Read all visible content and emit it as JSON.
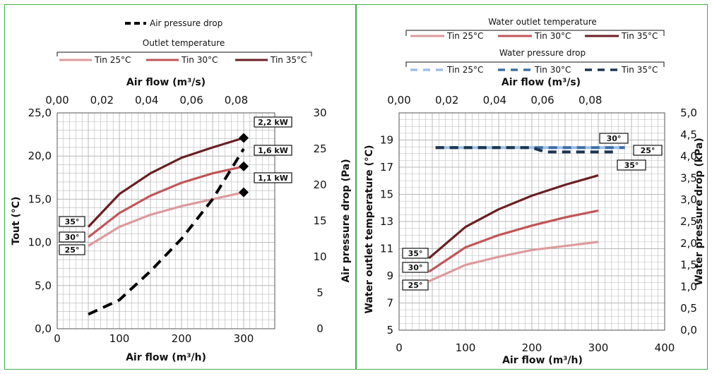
{
  "colors": {
    "border": "#3fae49",
    "tin25": "#dd9a9c",
    "tin30": "#c15558",
    "tin35": "#6a1f22",
    "air_dp": "#000000",
    "wdp25": "#9dbfe6",
    "wdp30": "#3f6fa6",
    "wdp35": "#1c3550",
    "grid": "#b8b8b8"
  },
  "chart_data": [
    {
      "type": "line",
      "x_bottom": {
        "label": "Air flow (m³/h)",
        "lim": [
          0,
          350
        ],
        "ticks": [
          "0",
          "100",
          "200",
          "300"
        ]
      },
      "x_top": {
        "label": "Air flow (m³/s)",
        "lim": [
          0,
          0.0972
        ],
        "ticks": [
          "0,00",
          "0,02",
          "0,04",
          "0,06",
          "0,08"
        ]
      },
      "y_left": {
        "label": "Tout (°C)",
        "lim": [
          0,
          25
        ],
        "ticks": [
          "0,0",
          "5,0",
          "10,0",
          "15,0",
          "20,0",
          "25,0"
        ]
      },
      "y_right": {
        "label": "Air pressure drop (Pa)",
        "lim": [
          0,
          30
        ],
        "ticks": [
          "0",
          "5",
          "10",
          "15",
          "20",
          "25",
          "30"
        ]
      },
      "legend_top": "Air pressure drop",
      "legend_title": "Outlet temperature",
      "series": [
        {
          "name": "Tin 25°C",
          "axis": "left",
          "x": [
            50,
            100,
            150,
            200,
            250,
            300
          ],
          "y": [
            9.6,
            11.8,
            13.2,
            14.2,
            15.0,
            15.8
          ]
        },
        {
          "name": "Tin 30°C",
          "axis": "left",
          "x": [
            50,
            100,
            150,
            200,
            250,
            300
          ],
          "y": [
            10.6,
            13.4,
            15.4,
            16.9,
            18.0,
            18.8
          ]
        },
        {
          "name": "Tin 35°C",
          "axis": "left",
          "x": [
            50,
            100,
            150,
            200,
            250,
            300
          ],
          "y": [
            11.8,
            15.6,
            18.0,
            19.8,
            21.0,
            22.1
          ]
        },
        {
          "name": "Air pressure drop",
          "axis": "right",
          "x": [
            50,
            100,
            150,
            200,
            250,
            300
          ],
          "y": [
            2.0,
            4.0,
            8.0,
            12.5,
            18.0,
            25.0
          ]
        }
      ],
      "start_tags": [
        "35°",
        "30°",
        "25°"
      ],
      "power_markers": [
        {
          "label": "2,2 kW",
          "x": 300,
          "y": 22.1
        },
        {
          "label": "1,6 kW",
          "x": 300,
          "y": 18.8
        },
        {
          "label": "1,1 kW",
          "x": 300,
          "y": 15.8
        }
      ]
    },
    {
      "type": "line",
      "x_bottom": {
        "label": "Air flow (m³/h)",
        "lim": [
          0,
          400
        ],
        "ticks": [
          "0",
          "100",
          "200",
          "300",
          "400"
        ]
      },
      "x_top": {
        "label": "Air flow (m³/s)",
        "lim": [
          0,
          0.1111
        ],
        "ticks": [
          "0,00",
          "0,02",
          "0,04",
          "0,06",
          "0,08"
        ]
      },
      "y_left": {
        "label": "Water outlet temperature (°C)",
        "lim": [
          5,
          21
        ],
        "ticks": [
          "5",
          "7",
          "9",
          "11",
          "13",
          "15",
          "17",
          "19"
        ]
      },
      "y_right": {
        "label": "Water pressure drop (kPa)",
        "lim": [
          0,
          5
        ],
        "ticks": [
          "0,0",
          "0,5",
          "1,0",
          "1,5",
          "2,0",
          "2,5",
          "3,0",
          "3,5",
          "4,0",
          "4,5",
          "5,0"
        ]
      },
      "legend_title_1": "Water outlet temperature",
      "legend_title_2": "Water pressure drop",
      "series": [
        {
          "name": "Tin 25°C",
          "axis": "left",
          "group": "temp",
          "x": [
            45,
            100,
            150,
            200,
            250,
            300
          ],
          "y": [
            8.6,
            9.8,
            10.4,
            10.9,
            11.2,
            11.5
          ]
        },
        {
          "name": "Tin 30°C",
          "axis": "left",
          "group": "temp",
          "x": [
            45,
            100,
            150,
            200,
            250,
            300
          ],
          "y": [
            9.3,
            11.1,
            12.0,
            12.7,
            13.3,
            13.8
          ]
        },
        {
          "name": "Tin 35°C",
          "axis": "left",
          "group": "temp",
          "x": [
            45,
            100,
            150,
            200,
            250,
            300
          ],
          "y": [
            10.3,
            12.6,
            13.9,
            14.9,
            15.7,
            16.4
          ]
        },
        {
          "name": "Tin 25°C",
          "axis": "right",
          "group": "dp",
          "x": [
            55,
            150,
            250,
            340
          ],
          "y": [
            4.2,
            4.2,
            4.2,
            4.2
          ]
        },
        {
          "name": "Tin 30°C",
          "axis": "right",
          "group": "dp",
          "x": [
            55,
            150,
            250,
            340
          ],
          "y": [
            4.2,
            4.2,
            4.2,
            4.2
          ]
        },
        {
          "name": "Tin 35°C",
          "axis": "right",
          "group": "dp",
          "x": [
            55,
            150,
            200,
            220,
            250,
            330
          ],
          "y": [
            4.2,
            4.2,
            4.2,
            4.1,
            4.1,
            4.1
          ]
        }
      ],
      "start_tags": [
        "35°",
        "30°",
        "25°"
      ],
      "end_tags": [
        "30°",
        "25°",
        "35°"
      ]
    }
  ]
}
